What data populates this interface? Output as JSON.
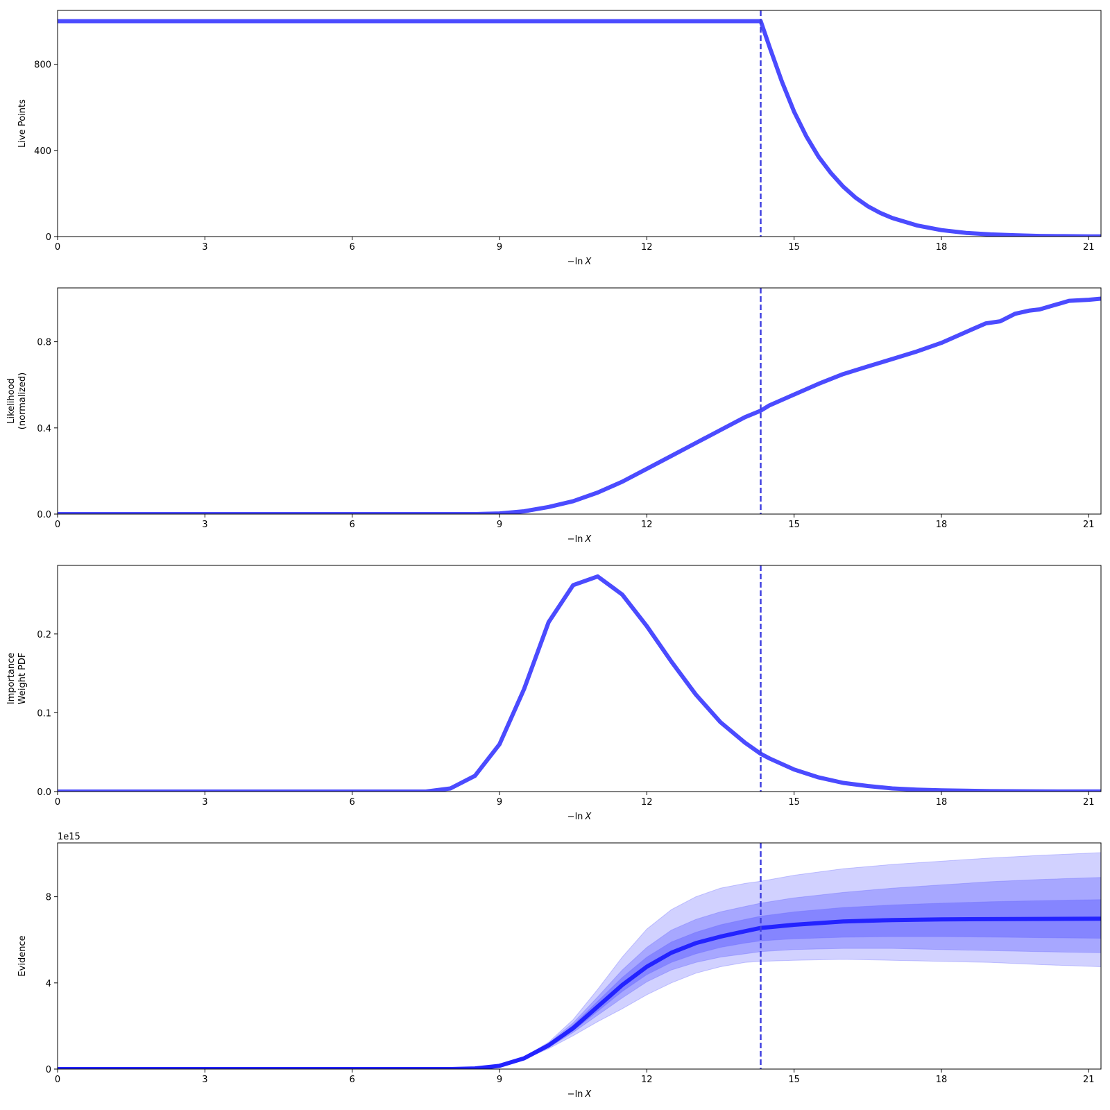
{
  "chart_data": [
    {
      "type": "line",
      "id": "live-points",
      "xlabel": "−ln X",
      "ylabel": [
        "Live Points"
      ],
      "offset_text": "",
      "xlim": [
        0,
        21.25
      ],
      "ylim": [
        0,
        1050
      ],
      "xticks": [
        0,
        3,
        6,
        9,
        12,
        15,
        18,
        21
      ],
      "yticks": [
        0,
        400,
        800
      ],
      "ytick_labels": [
        "0",
        "400",
        "800"
      ],
      "vline_x": 14.32,
      "line_color": "#4b4bff",
      "series": [
        {
          "x": [
            0,
            14.32,
            14.5,
            14.75,
            15.0,
            15.25,
            15.5,
            15.75,
            16.0,
            16.25,
            16.5,
            16.75,
            17.0,
            17.5,
            18.0,
            18.5,
            19.0,
            19.5,
            20.0,
            20.5,
            21.0,
            21.25
          ],
          "y": [
            1000,
            1000,
            880,
            720,
            580,
            465,
            370,
            295,
            232,
            181,
            141,
            110,
            86,
            52,
            30,
            17,
            10,
            6,
            3,
            2,
            1,
            1
          ]
        }
      ],
      "bands": []
    },
    {
      "type": "line",
      "id": "likelihood",
      "xlabel": "−ln X",
      "ylabel": [
        "Likelihood",
        "(normalized)"
      ],
      "offset_text": "",
      "xlim": [
        0,
        21.25
      ],
      "ylim": [
        0,
        1.05
      ],
      "xticks": [
        0,
        3,
        6,
        9,
        12,
        15,
        18,
        21
      ],
      "yticks": [
        0,
        0.4,
        0.8
      ],
      "ytick_labels": [
        "0.0",
        "0.4",
        "0.8"
      ],
      "vline_x": 14.32,
      "line_color": "#4b4bff",
      "series": [
        {
          "x": [
            0,
            8.5,
            9.0,
            9.5,
            10.0,
            10.5,
            11.0,
            11.5,
            12.0,
            12.5,
            13.0,
            13.5,
            14.0,
            14.32,
            14.5,
            15.0,
            15.5,
            16.0,
            16.5,
            17.0,
            17.5,
            18.0,
            18.5,
            18.9,
            19.2,
            19.5,
            19.8,
            20.0,
            20.3,
            20.6,
            21.0,
            21.25
          ],
          "y": [
            0,
            0,
            0.003,
            0.013,
            0.033,
            0.06,
            0.1,
            0.15,
            0.21,
            0.27,
            0.33,
            0.39,
            0.45,
            0.48,
            0.505,
            0.555,
            0.605,
            0.65,
            0.685,
            0.72,
            0.755,
            0.795,
            0.845,
            0.885,
            0.895,
            0.93,
            0.945,
            0.95,
            0.97,
            0.99,
            0.995,
            1.0
          ]
        }
      ],
      "bands": []
    },
    {
      "type": "line",
      "id": "importance-weight",
      "xlabel": "−ln X",
      "ylabel": [
        "Importance",
        "Weight PDF"
      ],
      "offset_text": "",
      "xlim": [
        0,
        21.25
      ],
      "ylim": [
        0,
        0.287
      ],
      "xticks": [
        0,
        3,
        6,
        9,
        12,
        15,
        18,
        21
      ],
      "yticks": [
        0,
        0.1,
        0.2
      ],
      "ytick_labels": [
        "0.0",
        "0.1",
        "0.2"
      ],
      "vline_x": 14.32,
      "line_color": "#4b4bff",
      "series": [
        {
          "x": [
            0,
            7.5,
            8.0,
            8.5,
            9.0,
            9.5,
            10.0,
            10.5,
            11.0,
            11.5,
            12.0,
            12.5,
            13.0,
            13.5,
            14.0,
            14.32,
            14.5,
            15.0,
            15.5,
            16.0,
            16.5,
            17.0,
            17.5,
            18.0,
            19.0,
            20.0,
            21.25
          ],
          "y": [
            0,
            0,
            0.004,
            0.02,
            0.06,
            0.13,
            0.215,
            0.262,
            0.273,
            0.25,
            0.21,
            0.165,
            0.123,
            0.088,
            0.062,
            0.048,
            0.042,
            0.028,
            0.018,
            0.011,
            0.007,
            0.004,
            0.0025,
            0.0015,
            0.0005,
            0.0002,
            0.0001
          ]
        }
      ],
      "bands": []
    },
    {
      "type": "area",
      "id": "evidence",
      "xlabel": "−ln X",
      "ylabel": [
        "Evidence"
      ],
      "offset_text": "1e15",
      "xlim": [
        0,
        21.25
      ],
      "ylim": [
        0,
        10.5
      ],
      "xticks": [
        0,
        3,
        6,
        9,
        12,
        15,
        18,
        21
      ],
      "yticks": [
        0,
        4,
        8
      ],
      "ytick_labels": [
        "0",
        "4",
        "8"
      ],
      "vline_x": 14.32,
      "line_color": "#2323ff",
      "series": [
        {
          "x": [
            0,
            8.0,
            8.5,
            9.0,
            9.5,
            10.0,
            10.5,
            11.0,
            11.5,
            12.0,
            12.5,
            13.0,
            13.5,
            14.0,
            14.32,
            15.0,
            16.0,
            17.0,
            18.0,
            19.0,
            20.0,
            21.25
          ],
          "y": [
            0,
            0,
            0.03,
            0.15,
            0.5,
            1.1,
            1.9,
            2.9,
            3.9,
            4.75,
            5.4,
            5.85,
            6.15,
            6.4,
            6.55,
            6.7,
            6.85,
            6.92,
            6.95,
            6.96,
            6.97,
            6.98
          ]
        }
      ],
      "bands": [
        {
          "level": "3sigma",
          "color": "#c9c9ff",
          "upper": [
            0,
            0,
            0.03,
            0.16,
            0.55,
            1.25,
            2.3,
            3.7,
            5.2,
            6.5,
            7.4,
            8.0,
            8.4,
            8.62,
            8.72,
            9.0,
            9.3,
            9.5,
            9.65,
            9.8,
            9.92,
            10.05
          ],
          "lower": [
            0,
            0,
            0.03,
            0.14,
            0.45,
            0.95,
            1.55,
            2.2,
            2.8,
            3.45,
            4.0,
            4.45,
            4.75,
            4.95,
            5.0,
            5.05,
            5.1,
            5.05,
            5.0,
            4.95,
            4.85,
            4.75
          ]
        },
        {
          "level": "2sigma",
          "color": "#a0a0ff",
          "upper": [
            0,
            0,
            0.03,
            0.155,
            0.53,
            1.2,
            2.15,
            3.35,
            4.6,
            5.65,
            6.45,
            6.95,
            7.3,
            7.55,
            7.7,
            7.95,
            8.2,
            8.4,
            8.55,
            8.7,
            8.8,
            8.9
          ],
          "lower": [
            0,
            0,
            0.03,
            0.145,
            0.47,
            1.0,
            1.7,
            2.5,
            3.3,
            4.05,
            4.6,
            4.95,
            5.2,
            5.35,
            5.45,
            5.55,
            5.6,
            5.6,
            5.55,
            5.5,
            5.45,
            5.4
          ]
        },
        {
          "level": "1sigma",
          "color": "#7f7fff",
          "upper": [
            0,
            0,
            0.03,
            0.152,
            0.52,
            1.15,
            2.05,
            3.15,
            4.25,
            5.2,
            5.9,
            6.35,
            6.7,
            6.95,
            7.1,
            7.3,
            7.5,
            7.62,
            7.7,
            7.77,
            7.82,
            7.87
          ],
          "lower": [
            0,
            0,
            0.03,
            0.148,
            0.48,
            1.05,
            1.78,
            2.68,
            3.6,
            4.38,
            4.95,
            5.35,
            5.65,
            5.85,
            5.95,
            6.05,
            6.12,
            6.15,
            6.15,
            6.13,
            6.1,
            6.07
          ]
        }
      ]
    }
  ]
}
